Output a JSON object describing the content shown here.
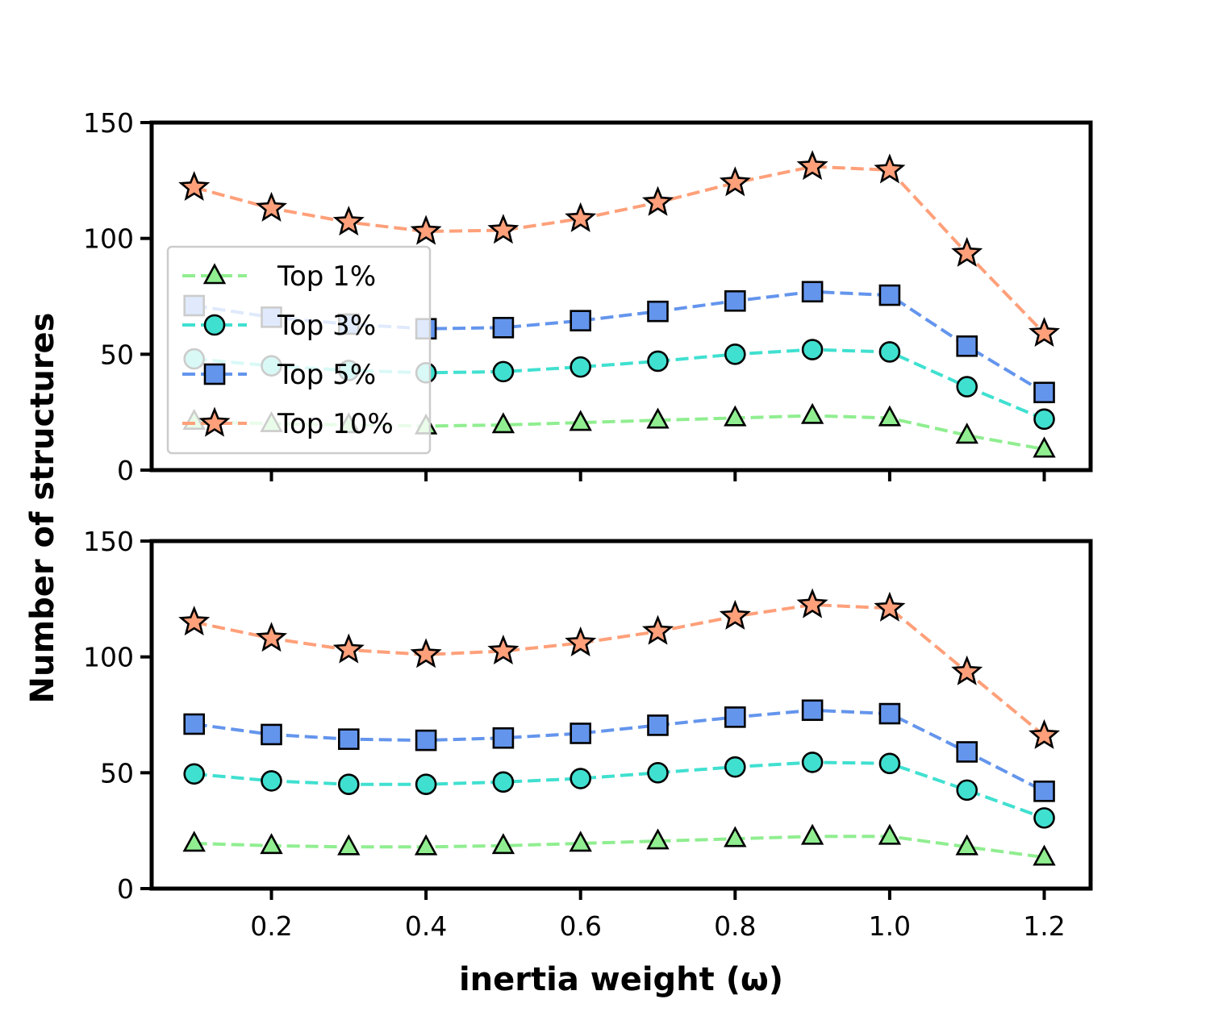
{
  "chart_data": {
    "type": "line",
    "xlabel": "inertia weight (ω)",
    "ylabel": "Number of structures",
    "x": [
      0.1,
      0.2,
      0.3,
      0.4,
      0.5,
      0.6,
      0.7,
      0.8,
      0.9,
      1.0,
      1.1,
      1.2
    ],
    "xticks": [
      "0.2",
      "0.4",
      "0.6",
      "0.8",
      "1.0",
      "1.2"
    ],
    "xtick_values": [
      0.2,
      0.4,
      0.6,
      0.8,
      1.0,
      1.2
    ],
    "xlim": [
      0.045,
      1.26
    ],
    "legend": {
      "placement": "lower-left of top panel",
      "entries": [
        "Top 1%",
        "Top 3%",
        "Top 5%",
        "Top 10%"
      ]
    },
    "series_style": [
      {
        "name": "Top 1%",
        "color": "#90ee90",
        "marker": "triangle"
      },
      {
        "name": "Top 3%",
        "color": "#40e0d0",
        "marker": "circle"
      },
      {
        "name": "Top 5%",
        "color": "#6495ed",
        "marker": "square"
      },
      {
        "name": "Top 10%",
        "color": "#ffa07a",
        "marker": "star"
      }
    ],
    "panels": [
      {
        "ylim": [
          0,
          150
        ],
        "yticks": [
          "0",
          "50",
          "100",
          "150"
        ],
        "ytick_values": [
          0,
          50,
          100,
          150
        ],
        "series": [
          {
            "name": "Top 1%",
            "values": [
              21,
              20,
              19.5,
              19,
              19.5,
              20.5,
              21.5,
              22.5,
              23.5,
              22.5,
              15,
              9
            ]
          },
          {
            "name": "Top 3%",
            "values": [
              48,
              45,
              43,
              42,
              42.5,
              44.5,
              47,
              50,
              52,
              51,
              36,
              22
            ]
          },
          {
            "name": "Top 5%",
            "values": [
              71,
              66,
              63,
              61,
              61.5,
              64.5,
              68.5,
              73,
              77,
              75.5,
              53.5,
              33.5
            ]
          },
          {
            "name": "Top 10%",
            "values": [
              122,
              113,
              107,
              103,
              103.5,
              108.5,
              115.5,
              124,
              131,
              129.5,
              93.5,
              59
            ]
          }
        ]
      },
      {
        "ylim": [
          0,
          150
        ],
        "yticks": [
          "0",
          "50",
          "100",
          "150"
        ],
        "ytick_values": [
          0,
          50,
          100,
          150
        ],
        "series": [
          {
            "name": "Top 1%",
            "values": [
              19.5,
              18.5,
              18,
              18,
              18.5,
              19.5,
              20.5,
              21.5,
              22.5,
              22.5,
              18,
              13.5
            ]
          },
          {
            "name": "Top 3%",
            "values": [
              49.5,
              46.5,
              45,
              45,
              46,
              47.5,
              50,
              52.5,
              54.5,
              54,
              42.5,
              30.5
            ]
          },
          {
            "name": "Top 5%",
            "values": [
              71,
              66.5,
              64.5,
              64,
              65,
              67,
              70.5,
              74,
              77,
              75.5,
              59,
              42
            ]
          },
          {
            "name": "Top 10%",
            "values": [
              115,
              108,
              103,
              101,
              102.5,
              106,
              111,
              117.5,
              122.5,
              121,
              93.5,
              66
            ]
          }
        ]
      }
    ]
  }
}
